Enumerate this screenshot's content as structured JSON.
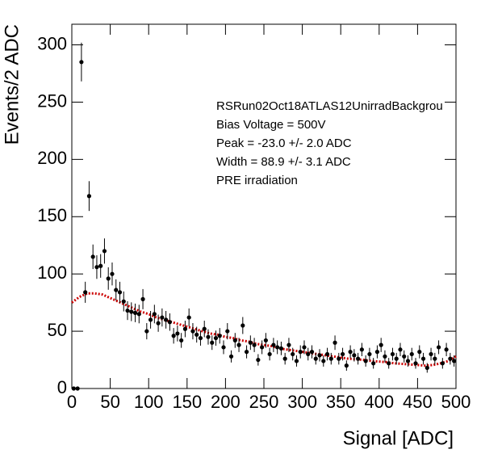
{
  "chart_data": {
    "type": "scatter",
    "xlabel": "Signal [ADC]",
    "ylabel": "Events/2 ADC",
    "annotations": [
      "RSRun02Oct18ATLAS12UnirradBackgrou",
      "Bias Voltage = 500V",
      "Peak = -23.0 +/- 2.0 ADC",
      "Width = 88.9 +/- 3.1 ADC",
      "PRE irradiation"
    ],
    "xlim": [
      0,
      500
    ],
    "ylim": [
      0,
      318
    ],
    "xticks": [
      0,
      50,
      100,
      150,
      200,
      250,
      300,
      350,
      400,
      450,
      500
    ],
    "yticks": [
      0,
      50,
      100,
      150,
      200,
      250,
      300
    ],
    "series": [
      {
        "color": "#000000",
        "x": [
          2.5,
          7.5,
          12.5,
          17.5,
          22.5,
          27.5,
          32.5,
          37.5,
          42.5,
          47.5,
          52.5,
          57.5,
          62.5,
          67.5,
          72.5,
          77.5,
          82.5,
          87.5,
          92.5,
          97.5,
          102.5,
          107.5,
          112.5,
          117.5,
          122.5,
          127.5,
          132.5,
          137.5,
          142.5,
          147.5,
          152.5,
          157.5,
          162.5,
          167.5,
          172.5,
          177.5,
          182.5,
          187.5,
          192.5,
          197.5,
          202.5,
          207.5,
          212.5,
          217.5,
          222.5,
          227.5,
          232.5,
          237.5,
          242.5,
          247.5,
          252.5,
          257.5,
          262.5,
          267.5,
          272.5,
          277.5,
          282.5,
          287.5,
          292.5,
          297.5,
          302.5,
          307.5,
          312.5,
          317.5,
          322.5,
          327.5,
          332.5,
          337.5,
          342.5,
          347.5,
          352.5,
          357.5,
          362.5,
          367.5,
          372.5,
          377.5,
          382.5,
          387.5,
          392.5,
          397.5,
          402.5,
          407.5,
          412.5,
          417.5,
          422.5,
          427.5,
          432.5,
          437.5,
          442.5,
          447.5,
          452.5,
          457.5,
          462.5,
          467.5,
          472.5,
          477.5,
          482.5,
          487.5,
          492.5,
          497.5
        ],
        "values": [
          0,
          0,
          285,
          84,
          168,
          115,
          106,
          107,
          120,
          96,
          100,
          86,
          84,
          76,
          68,
          67,
          66,
          65,
          78,
          50,
          60,
          65,
          57,
          62,
          60,
          58,
          46,
          48,
          42,
          52,
          62,
          50,
          47,
          44,
          52,
          45,
          40,
          44,
          46,
          36,
          50,
          28,
          42,
          38,
          55,
          32,
          40,
          38,
          25,
          36,
          42,
          30,
          38,
          36,
          35,
          26,
          38,
          30,
          24,
          32,
          36,
          30,
          32,
          26,
          29,
          24,
          30,
          26,
          40,
          26,
          30,
          20,
          32,
          29,
          26,
          34,
          24,
          30,
          22,
          32,
          38,
          28,
          22,
          30,
          26,
          34,
          28,
          24,
          30,
          22,
          32,
          26,
          18,
          30,
          26,
          36,
          22,
          34,
          26,
          24
        ],
        "errors": [
          0,
          0,
          16.9,
          9.2,
          13,
          10.7,
          10.3,
          10.3,
          11,
          9.8,
          10,
          9.3,
          9.2,
          8.7,
          8.2,
          8.2,
          8.1,
          8.1,
          8.8,
          7.1,
          7.7,
          8.1,
          7.5,
          7.9,
          7.7,
          7.6,
          6.8,
          6.9,
          6.5,
          7.2,
          7.9,
          7.1,
          6.9,
          6.6,
          7.2,
          6.7,
          6.3,
          6.6,
          6.8,
          6,
          7.1,
          5.3,
          6.5,
          6.2,
          7.4,
          5.7,
          6.3,
          6.2,
          5,
          6,
          6.5,
          5.5,
          6.2,
          6,
          5.9,
          5.1,
          6.2,
          5.5,
          4.9,
          5.7,
          6,
          5.5,
          5.7,
          5.1,
          5.4,
          4.9,
          5.5,
          5.1,
          6.3,
          5.1,
          5.5,
          4.5,
          5.7,
          5.4,
          5.1,
          5.8,
          4.9,
          5.5,
          4.7,
          5.7,
          6.2,
          5.3,
          4.7,
          5.5,
          5.1,
          5.8,
          5.3,
          4.9,
          5.5,
          4.7,
          5.7,
          5.1,
          4.2,
          5.5,
          5.1,
          6,
          4.7,
          5.8,
          5.1,
          4.9
        ]
      },
      {
        "color": "#cc0000",
        "x": [
          0,
          10,
          20,
          30,
          40,
          50,
          60,
          70,
          80,
          90,
          100,
          110,
          120,
          130,
          140,
          150,
          160,
          170,
          180,
          190,
          200,
          210,
          220,
          230,
          240,
          250,
          260,
          270,
          280,
          290,
          300,
          310,
          320,
          330,
          340,
          350,
          360,
          370,
          380,
          390,
          400,
          410,
          420,
          430,
          440,
          450,
          460,
          470,
          480,
          490,
          500
        ],
        "values": [
          75,
          80,
          83,
          83,
          82,
          79,
          76,
          73,
          70,
          67,
          65,
          62,
          60,
          58,
          56,
          54,
          52,
          50,
          48,
          47,
          45,
          44,
          42,
          41,
          39,
          38,
          37,
          35,
          34,
          33,
          32,
          31,
          30,
          29,
          28,
          27,
          26,
          25.5,
          25,
          24,
          23.5,
          23,
          22,
          21.5,
          21,
          20.5,
          20,
          20.5,
          22,
          24,
          28
        ]
      }
    ]
  }
}
